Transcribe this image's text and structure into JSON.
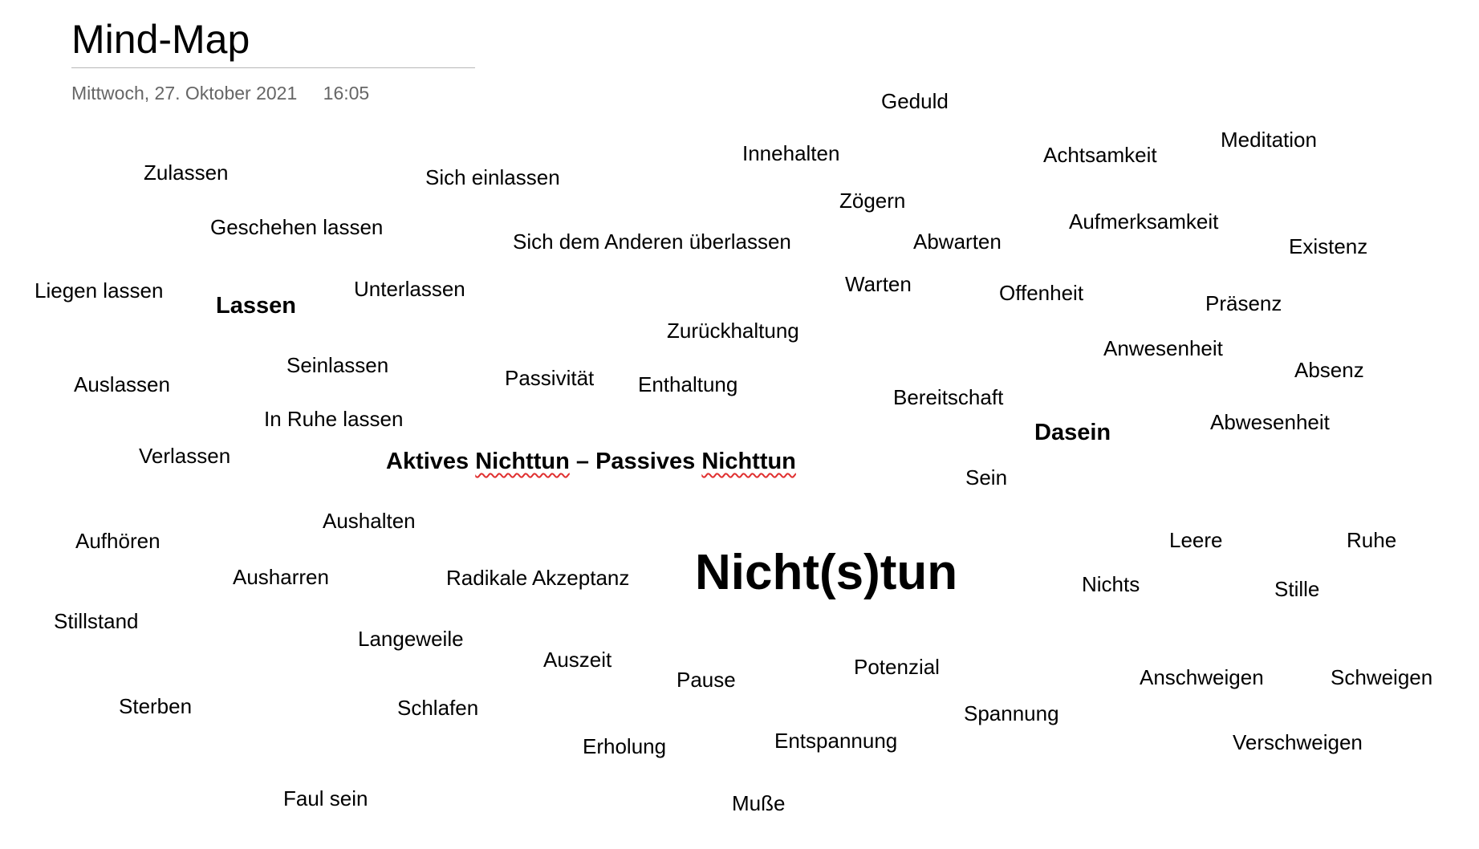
{
  "page": {
    "title": "Mind-Map",
    "date": "Mittwoch, 27. Oktober 2021",
    "time": "16:05"
  },
  "mindmap": {
    "center": "Nicht(s)tun",
    "headline": {
      "part1": "Aktives",
      "part2": "Nichttun",
      "separator": "– Passives",
      "part4": "Nichttun"
    },
    "subtopics": {
      "lassen": "Lassen",
      "dasein": "Dasein"
    },
    "words": {
      "geduld": "Geduld",
      "innehalten": "Innehalten",
      "achtsamkeit": "Achtsamkeit",
      "meditation": "Meditation",
      "zulassen": "Zulassen",
      "sich_einlassen": "Sich einlassen",
      "zoegern": "Zögern",
      "geschehen_lassen": "Geschehen lassen",
      "aufmerksamkeit": "Aufmerksamkeit",
      "sich_dem_anderen": "Sich dem Anderen überlassen",
      "abwarten": "Abwarten",
      "existenz": "Existenz",
      "liegen_lassen": "Liegen lassen",
      "unterlassen": "Unterlassen",
      "warten": "Warten",
      "offenheit": "Offenheit",
      "praesenz": "Präsenz",
      "zurueckhaltung": "Zurückhaltung",
      "anwesenheit": "Anwesenheit",
      "seinlassen": "Seinlassen",
      "absenz": "Absenz",
      "auslassen": "Auslassen",
      "passivitaet": "Passivität",
      "enthaltung": "Enthaltung",
      "bereitschaft": "Bereitschaft",
      "in_ruhe_lassen": "In Ruhe lassen",
      "abwesenheit": "Abwesenheit",
      "verlassen": "Verlassen",
      "sein": "Sein",
      "aushalten": "Aushalten",
      "aufhoeren": "Aufhören",
      "leere": "Leere",
      "ruhe": "Ruhe",
      "ausharren": "Ausharren",
      "radikale_akzeptanz": "Radikale Akzeptanz",
      "nichts": "Nichts",
      "stille": "Stille",
      "stillstand": "Stillstand",
      "langeweile": "Langeweile",
      "auszeit": "Auszeit",
      "potenzial": "Potenzial",
      "pause": "Pause",
      "anschweigen": "Anschweigen",
      "schweigen": "Schweigen",
      "sterben": "Sterben",
      "schlafen": "Schlafen",
      "spannung": "Spannung",
      "entspannung": "Entspannung",
      "verschweigen": "Verschweigen",
      "erholung": "Erholung",
      "faul_sein": "Faul sein",
      "musse": "Muße"
    }
  }
}
